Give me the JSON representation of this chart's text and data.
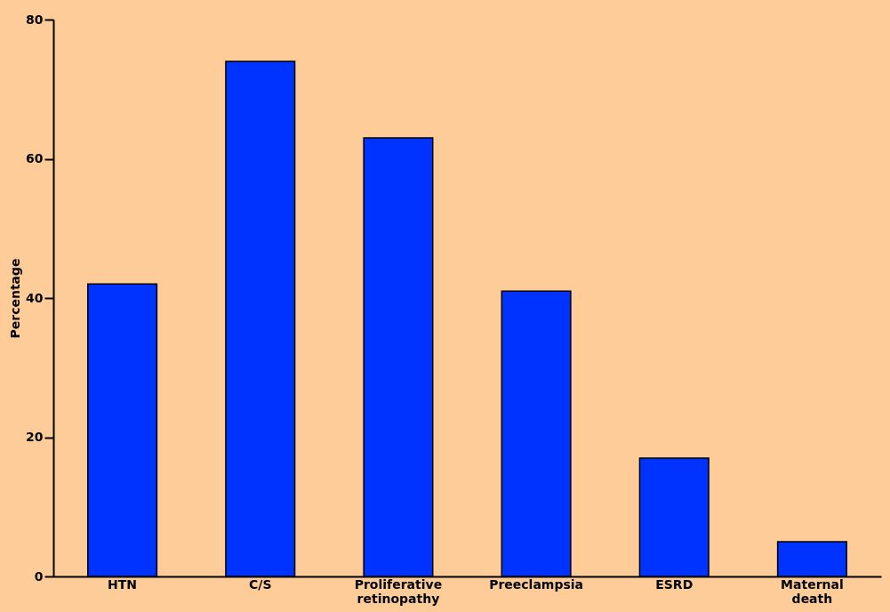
{
  "chart_data": {
    "type": "bar",
    "ylabel": "Percentage",
    "categories": [
      "HTN",
      "C/S",
      "Proliferative retinopathy",
      "Preeclampsia",
      "ESRD",
      "Maternal death"
    ],
    "values": [
      42,
      74,
      63,
      41,
      17,
      5
    ],
    "color": "#0033ff",
    "ylim": [
      0,
      80
    ],
    "yticks": [
      0,
      20,
      40,
      60,
      80
    ],
    "grid": false
  }
}
